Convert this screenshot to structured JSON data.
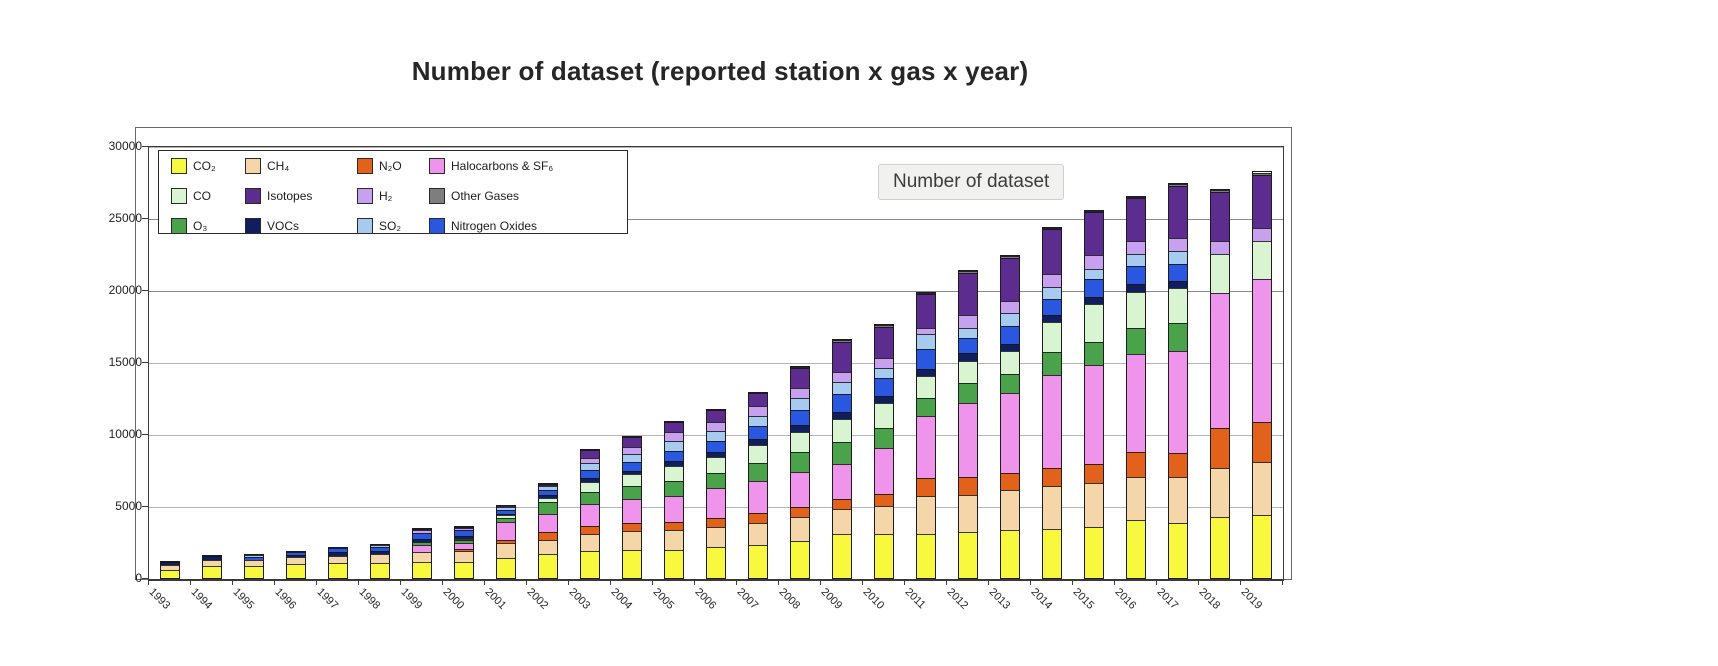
{
  "title": {
    "text": "Number of dataset (reported station x gas x year)"
  },
  "tooltip": {
    "text": "Number of dataset"
  },
  "colors": {
    "grid": "#b5b5b5",
    "grid_dark": "#8a8a8a",
    "axis": "#3a3a3a",
    "frame": "#6a6a6a",
    "tooltip_bg": "#f1f1f0",
    "tooltip_border": "#cfcfcf"
  },
  "chart_data": {
    "type": "bar",
    "stacked": true,
    "title": "Number of dataset (reported station x gas x year)",
    "xlabel": "",
    "ylabel": "",
    "ylim": [
      0,
      30000
    ],
    "y_ticks": [
      0,
      5000,
      10000,
      15000,
      20000,
      25000,
      30000
    ],
    "dark_gridlines": [
      20000,
      25000
    ],
    "grid": true,
    "legend_position": "top-left",
    "categories": [
      "1993",
      "1994",
      "1995",
      "1996",
      "1997",
      "1998",
      "1999",
      "2000",
      "2001",
      "2002",
      "2003",
      "2004",
      "2005",
      "2006",
      "2007",
      "2008",
      "2009",
      "2010",
      "2011",
      "2012",
      "2013",
      "2014",
      "2015",
      "2016",
      "2017",
      "2018",
      "2019"
    ],
    "series": [
      {
        "name": "CO₂",
        "color": "#F8F83E",
        "values": [
          650,
          950,
          950,
          1050,
          1100,
          1150,
          1150,
          1200,
          1450,
          1700,
          1900,
          2000,
          2000,
          2150,
          2300,
          2600,
          3050,
          3100,
          3100,
          3200,
          3350,
          3450,
          3550,
          4050,
          3850,
          4250,
          4400
        ]
      },
      {
        "name": "CH₄",
        "color": "#F5D6A8",
        "values": [
          350,
          400,
          450,
          500,
          550,
          650,
          750,
          800,
          1050,
          1050,
          1200,
          1300,
          1350,
          1450,
          1550,
          1700,
          1800,
          1950,
          2600,
          2600,
          2800,
          3000,
          3100,
          3000,
          3200,
          3400,
          3700
        ]
      },
      {
        "name": "N₂O",
        "color": "#E2611B",
        "values": [
          0,
          0,
          0,
          0,
          0,
          0,
          0,
          100,
          200,
          550,
          550,
          600,
          600,
          650,
          700,
          700,
          700,
          850,
          1300,
          1250,
          1200,
          1250,
          1300,
          1750,
          1650,
          2850,
          2800
        ]
      },
      {
        "name": "Halocarbons & SF₆",
        "color": "#EE95EB",
        "values": [
          0,
          0,
          0,
          0,
          0,
          0,
          500,
          450,
          1300,
          1300,
          1600,
          1700,
          1850,
          2050,
          2250,
          2400,
          2450,
          3200,
          4350,
          5150,
          5600,
          6500,
          6950,
          6850,
          7150,
          9400,
          10000
        ]
      },
      {
        "name": "O₃",
        "color": "#4AA34A",
        "values": [
          0,
          0,
          0,
          0,
          0,
          0,
          200,
          200,
          300,
          800,
          850,
          900,
          1050,
          1100,
          1250,
          1400,
          1550,
          1400,
          1250,
          1450,
          1300,
          1600,
          1600,
          1800,
          1950,
          0,
          0
        ]
      },
      {
        "name": "CO",
        "color": "#D9F4D0",
        "values": [
          0,
          0,
          0,
          0,
          0,
          0,
          0,
          100,
          200,
          350,
          700,
          800,
          1050,
          1100,
          1300,
          1450,
          1600,
          1750,
          1550,
          1550,
          1600,
          2100,
          2650,
          2550,
          2450,
          2700,
          2650
        ]
      },
      {
        "name": "VOCs",
        "color": "#101D5F",
        "values": [
          250,
          300,
          0,
          150,
          250,
          200,
          250,
          200,
          100,
          150,
          250,
          250,
          350,
          350,
          400,
          450,
          500,
          500,
          500,
          500,
          500,
          500,
          500,
          550,
          500,
          0,
          0
        ]
      },
      {
        "name": "Nitrogen Oxides",
        "color": "#2957E0",
        "values": [
          0,
          0,
          200,
          250,
          350,
          300,
          400,
          450,
          250,
          400,
          550,
          600,
          700,
          750,
          900,
          1100,
          1250,
          1250,
          1400,
          1050,
          1250,
          1100,
          1250,
          1200,
          1200,
          0,
          0
        ]
      },
      {
        "name": "SO₂",
        "color": "#A7CBEF",
        "values": [
          0,
          0,
          150,
          0,
          0,
          100,
          0,
          0,
          250,
          300,
          500,
          550,
          700,
          700,
          750,
          850,
          850,
          700,
          1050,
          750,
          900,
          850,
          700,
          850,
          900,
          0,
          0
        ]
      },
      {
        "name": "H₂",
        "color": "#C7A1F0",
        "values": [
          0,
          0,
          0,
          0,
          0,
          0,
          200,
          150,
          50,
          50,
          350,
          500,
          600,
          650,
          700,
          700,
          700,
          700,
          400,
          850,
          850,
          900,
          950,
          900,
          900,
          900,
          850
        ]
      },
      {
        "name": "Isotopes",
        "color": "#5C2D8F",
        "values": [
          0,
          0,
          0,
          0,
          0,
          0,
          100,
          50,
          0,
          50,
          550,
          700,
          700,
          850,
          900,
          1350,
          2100,
          2200,
          2350,
          3000,
          3000,
          3100,
          3000,
          3000,
          3600,
          3450,
          3700
        ]
      },
      {
        "name": "Other Gases",
        "color": "#7E7E7E",
        "values": [
          0,
          0,
          0,
          0,
          0,
          0,
          0,
          0,
          0,
          0,
          0,
          0,
          0,
          0,
          0,
          100,
          100,
          100,
          100,
          100,
          150,
          100,
          100,
          100,
          150,
          150,
          200
        ]
      }
    ],
    "legend_order": [
      "CO₂",
      "CH₄",
      "N₂O",
      "Halocarbons & SF₆",
      "CO",
      "Isotopes",
      "H₂",
      "Other Gases",
      "O₃",
      "VOCs",
      "SO₂",
      "Nitrogen Oxides"
    ]
  }
}
